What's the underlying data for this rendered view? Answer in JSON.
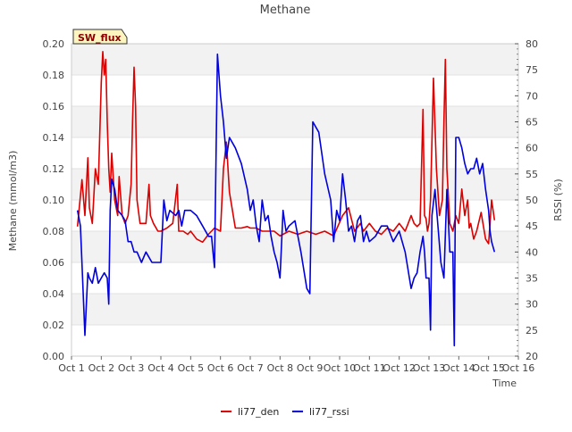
{
  "chart_data": {
    "type": "line",
    "title": "Methane",
    "badge": "SW_flux",
    "xlabel": "Time",
    "ylabel_left": "Methane (mmol/m3)",
    "ylabel_right": "RSSI (%)",
    "xlim": [
      1,
      16
    ],
    "ylim_left": [
      0.0,
      0.2
    ],
    "ylim_right": [
      20,
      80
    ],
    "x_ticks": [
      {
        "x": 1,
        "label": "Oct 1"
      },
      {
        "x": 2,
        "label": "Oct 2"
      },
      {
        "x": 3,
        "label": "Oct 3"
      },
      {
        "x": 4,
        "label": "Oct 4"
      },
      {
        "x": 5,
        "label": "Oct 5"
      },
      {
        "x": 6,
        "label": "Oct 6"
      },
      {
        "x": 7,
        "label": "Oct 7"
      },
      {
        "x": 8,
        "label": "Oct 8"
      },
      {
        "x": 9,
        "label": "Oct 9"
      },
      {
        "x": 10,
        "label": "Oct 10"
      },
      {
        "x": 11,
        "label": "Oct 11"
      },
      {
        "x": 12,
        "label": "Oct 12"
      },
      {
        "x": 13,
        "label": "Oct 13"
      },
      {
        "x": 14,
        "label": "Oct 14"
      },
      {
        "x": 15,
        "label": "Oct 15"
      },
      {
        "x": 16,
        "label": "Oct 16"
      }
    ],
    "y_left_ticks": [
      {
        "v": 0.0,
        "label": "0.00"
      },
      {
        "v": 0.02,
        "label": "0.02"
      },
      {
        "v": 0.04,
        "label": "0.04"
      },
      {
        "v": 0.06,
        "label": "0.06"
      },
      {
        "v": 0.08,
        "label": "0.08"
      },
      {
        "v": 0.1,
        "label": "0.10"
      },
      {
        "v": 0.12,
        "label": "0.12"
      },
      {
        "v": 0.14,
        "label": "0.14"
      },
      {
        "v": 0.16,
        "label": "0.16"
      },
      {
        "v": 0.18,
        "label": "0.18"
      },
      {
        "v": 0.2,
        "label": "0.20"
      }
    ],
    "y_right_ticks": [
      {
        "v": 20,
        "label": "20"
      },
      {
        "v": 25,
        "label": "25"
      },
      {
        "v": 30,
        "label": "30"
      },
      {
        "v": 35,
        "label": "35"
      },
      {
        "v": 40,
        "label": "40"
      },
      {
        "v": 45,
        "label": "45"
      },
      {
        "v": 50,
        "label": "50"
      },
      {
        "v": 55,
        "label": "55"
      },
      {
        "v": 60,
        "label": "60"
      },
      {
        "v": 65,
        "label": "65"
      },
      {
        "v": 70,
        "label": "70"
      },
      {
        "v": 75,
        "label": "75"
      },
      {
        "v": 80,
        "label": "80"
      }
    ],
    "series": [
      {
        "name": "li77_den",
        "axis": "left",
        "color": "#dd0000",
        "x": [
          1.2,
          1.35,
          1.45,
          1.55,
          1.6,
          1.7,
          1.8,
          1.9,
          2.0,
          2.05,
          2.1,
          2.15,
          2.2,
          2.25,
          2.3,
          2.35,
          2.45,
          2.55,
          2.6,
          2.7,
          2.8,
          2.9,
          3.0,
          3.05,
          3.1,
          3.15,
          3.2,
          3.3,
          3.5,
          3.6,
          3.65,
          3.75,
          3.9,
          4.0,
          4.2,
          4.4,
          4.55,
          4.6,
          4.75,
          4.9,
          5.0,
          5.2,
          5.4,
          5.6,
          5.8,
          6.0,
          6.1,
          6.2,
          6.3,
          6.5,
          6.7,
          6.9,
          7.0,
          7.2,
          7.4,
          7.6,
          7.8,
          8.0,
          8.3,
          8.6,
          8.9,
          9.2,
          9.5,
          9.8,
          10.1,
          10.3,
          10.5,
          10.7,
          10.8,
          11.0,
          11.2,
          11.4,
          11.6,
          11.8,
          12.0,
          12.2,
          12.3,
          12.4,
          12.5,
          12.6,
          12.7,
          12.8,
          12.85,
          12.9,
          12.95,
          13.0,
          13.05,
          13.15,
          13.25,
          13.35,
          13.45,
          13.5,
          13.55,
          13.6,
          13.7,
          13.8,
          13.9,
          14.0,
          14.1,
          14.2,
          14.3,
          14.35,
          14.4,
          14.5,
          14.6,
          14.75,
          14.9,
          15.0,
          15.05,
          15.1,
          15.2
        ],
        "y": [
          0.083,
          0.113,
          0.09,
          0.127,
          0.095,
          0.085,
          0.12,
          0.11,
          0.175,
          0.195,
          0.18,
          0.19,
          0.15,
          0.12,
          0.105,
          0.13,
          0.1,
          0.09,
          0.115,
          0.09,
          0.085,
          0.09,
          0.11,
          0.15,
          0.185,
          0.16,
          0.1,
          0.085,
          0.085,
          0.11,
          0.09,
          0.085,
          0.08,
          0.08,
          0.082,
          0.085,
          0.11,
          0.08,
          0.08,
          0.078,
          0.08,
          0.075,
          0.073,
          0.078,
          0.082,
          0.08,
          0.12,
          0.137,
          0.105,
          0.082,
          0.082,
          0.083,
          0.082,
          0.082,
          0.08,
          0.08,
          0.08,
          0.077,
          0.08,
          0.078,
          0.08,
          0.078,
          0.08,
          0.077,
          0.09,
          0.095,
          0.08,
          0.085,
          0.08,
          0.085,
          0.08,
          0.078,
          0.082,
          0.08,
          0.085,
          0.08,
          0.085,
          0.09,
          0.085,
          0.083,
          0.085,
          0.158,
          0.09,
          0.088,
          0.08,
          0.085,
          0.1,
          0.178,
          0.12,
          0.09,
          0.1,
          0.15,
          0.19,
          0.12,
          0.085,
          0.08,
          0.09,
          0.085,
          0.107,
          0.09,
          0.1,
          0.082,
          0.085,
          0.075,
          0.08,
          0.092,
          0.075,
          0.072,
          0.085,
          0.1,
          0.087
        ]
      },
      {
        "name": "li77_rssi",
        "axis": "right",
        "color": "#0000dd",
        "x": [
          1.2,
          1.3,
          1.45,
          1.55,
          1.6,
          1.7,
          1.8,
          1.9,
          2.0,
          2.1,
          2.2,
          2.25,
          2.3,
          2.35,
          2.45,
          2.55,
          2.7,
          2.8,
          2.9,
          3.0,
          3.1,
          3.2,
          3.35,
          3.5,
          3.7,
          3.9,
          4.0,
          4.1,
          4.2,
          4.3,
          4.5,
          4.6,
          4.7,
          4.8,
          5.0,
          5.2,
          5.4,
          5.6,
          5.7,
          5.75,
          5.8,
          5.9,
          6.0,
          6.1,
          6.2,
          6.3,
          6.5,
          6.7,
          6.9,
          7.0,
          7.1,
          7.2,
          7.3,
          7.4,
          7.5,
          7.6,
          7.7,
          7.8,
          7.9,
          8.0,
          8.1,
          8.2,
          8.3,
          8.5,
          8.7,
          8.9,
          9.0,
          9.1,
          9.3,
          9.5,
          9.7,
          9.8,
          9.9,
          10.0,
          10.1,
          10.2,
          10.3,
          10.4,
          10.5,
          10.6,
          10.7,
          10.8,
          10.9,
          11.0,
          11.2,
          11.4,
          11.6,
          11.8,
          12.0,
          12.2,
          12.4,
          12.5,
          12.6,
          12.7,
          12.8,
          12.85,
          12.9,
          13.0,
          13.05,
          13.1,
          13.2,
          13.3,
          13.4,
          13.5,
          13.6,
          13.7,
          13.8,
          13.85,
          13.9,
          14.0,
          14.1,
          14.2,
          14.3,
          14.4,
          14.5,
          14.6,
          14.7,
          14.8,
          14.9,
          15.0,
          15.05,
          15.1,
          15.2
        ],
        "y": [
          48,
          45,
          24,
          36,
          35,
          34,
          37,
          34,
          35,
          36,
          35,
          30,
          48,
          54,
          52,
          48,
          47,
          46,
          42,
          42,
          40,
          40,
          38,
          40,
          38,
          38,
          38,
          50,
          46,
          48,
          47,
          48,
          45,
          48,
          48,
          47,
          45,
          43,
          43,
          40,
          37,
          78,
          70,
          65,
          58,
          62,
          60,
          57,
          52,
          48,
          50,
          45,
          42,
          50,
          46,
          47,
          43,
          40,
          38,
          35,
          48,
          44,
          45,
          46,
          40,
          33,
          32,
          65,
          63,
          55,
          50,
          42,
          48,
          46,
          55,
          50,
          44,
          45,
          42,
          46,
          47,
          42,
          44,
          42,
          43,
          45,
          45,
          42,
          44,
          40,
          33,
          35,
          36,
          40,
          43,
          40,
          35,
          35,
          25,
          47,
          52,
          45,
          38,
          35,
          52,
          40,
          40,
          22,
          62,
          62,
          60,
          57,
          55,
          56,
          56,
          58,
          55,
          57,
          52,
          48,
          44,
          42,
          40
        ]
      }
    ],
    "legend": [
      {
        "name": "li77_den",
        "color": "#dd0000"
      },
      {
        "name": "li77_rssi",
        "color": "#0000dd"
      }
    ]
  }
}
